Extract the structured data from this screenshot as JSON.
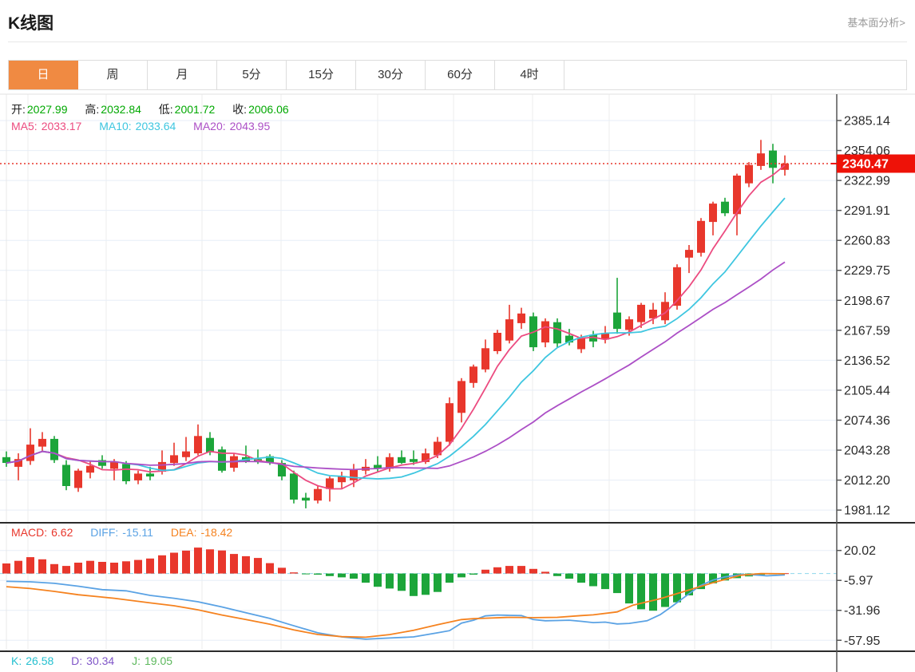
{
  "header": {
    "title": "K线图",
    "link": "基本面分析>"
  },
  "tabs": {
    "items": [
      {
        "name": "tab-day",
        "label": "日",
        "active": true
      },
      {
        "name": "tab-week",
        "label": "周",
        "active": false
      },
      {
        "name": "tab-month",
        "label": "月",
        "active": false
      },
      {
        "name": "tab-5min",
        "label": "5分",
        "active": false
      },
      {
        "name": "tab-15min",
        "label": "15分",
        "active": false
      },
      {
        "name": "tab-30min",
        "label": "30分",
        "active": false
      },
      {
        "name": "tab-60min",
        "label": "60分",
        "active": false
      },
      {
        "name": "tab-4hour",
        "label": "4时",
        "active": false
      }
    ]
  },
  "ohlc_legend": {
    "open_label": "开:",
    "open_value": "2027.99",
    "high_label": "高:",
    "high_value": "2032.84",
    "low_label": "低:",
    "low_value": "2001.72",
    "close_label": "收:",
    "close_value": "2006.06"
  },
  "ma_legend": {
    "ma5_label": "MA5:",
    "ma5_value": "2033.17",
    "ma10_label": "MA10:",
    "ma10_value": "2033.64",
    "ma20_label": "MA20:",
    "ma20_value": "2043.95"
  },
  "macd_legend": {
    "macd_label": "MACD:",
    "macd_value": "6.62",
    "diff_label": "DIFF:",
    "diff_value": "-15.11",
    "dea_label": "DEA:",
    "dea_value": "-18.42"
  },
  "kdj_legend": {
    "k_label": "K:",
    "k_value": "26.58",
    "d_label": "D:",
    "d_value": "30.34",
    "j_label": "J:",
    "j_value": "19.05"
  },
  "colors": {
    "up": "#e8372c",
    "down": "#1ca53a",
    "ma5": "#ec4b80",
    "ma10": "#3ec6e0",
    "ma20": "#ac4fc6",
    "diff": "#5aa2e4",
    "dea": "#f5821f",
    "k": "#26c0d0",
    "d": "#8056c8",
    "j": "#5cb85c",
    "ohlc_value": "#00a800",
    "active_tab": "#f08a42",
    "last_price_bg": "#ee1208"
  },
  "chart_data": {
    "type": "candlestick",
    "title": "K线图",
    "grid": true,
    "legend_position": "top-left",
    "y_axis_ticks": [
      2385.14,
      2354.06,
      2322.99,
      2291.91,
      2260.83,
      2229.75,
      2198.67,
      2167.59,
      2136.52,
      2105.44,
      2074.36,
      2043.28,
      2012.2,
      1981.12
    ],
    "last_price": 2340.47,
    "ma_periods": [
      5,
      10,
      20
    ],
    "candles": [
      [
        2036,
        2042,
        2026,
        2030
      ],
      [
        2026,
        2040,
        2012,
        2034
      ],
      [
        2032,
        2066,
        2028,
        2049
      ],
      [
        2047,
        2062,
        2042,
        2055
      ],
      [
        2055,
        2058,
        2030,
        2033
      ],
      [
        2027.99,
        2032.84,
        2001.72,
        2006.06
      ],
      [
        2004,
        2024,
        2000,
        2022
      ],
      [
        2020,
        2032,
        2014,
        2027
      ],
      [
        2033,
        2038,
        2024,
        2027
      ],
      [
        2024,
        2034,
        2012,
        2031
      ],
      [
        2029,
        2032,
        2008,
        2011
      ],
      [
        2012,
        2022,
        2008,
        2019
      ],
      [
        2019,
        2026,
        2012,
        2016
      ],
      [
        2021,
        2043,
        2018,
        2031
      ],
      [
        2030,
        2051,
        2027,
        2038
      ],
      [
        2036,
        2057,
        2032,
        2042
      ],
      [
        2040,
        2070,
        2038,
        2058
      ],
      [
        2056,
        2062,
        2038,
        2041
      ],
      [
        2044,
        2047,
        2020,
        2022
      ],
      [
        2025,
        2040,
        2021,
        2037
      ],
      [
        2036,
        2048,
        2030,
        2032
      ],
      [
        2034,
        2044,
        2029,
        2031
      ],
      [
        2037,
        2039,
        2028,
        2030
      ],
      [
        2030,
        2033,
        2012,
        2016
      ],
      [
        2019,
        2022,
        1988,
        1992
      ],
      [
        1994,
        1999,
        1983,
        1991
      ],
      [
        1991,
        2006,
        1988,
        2003
      ],
      [
        2003,
        2016,
        1990,
        2014
      ],
      [
        2010,
        2021,
        2004,
        2016
      ],
      [
        2012,
        2029,
        2005,
        2023
      ],
      [
        2022,
        2034,
        2018,
        2026
      ],
      [
        2028,
        2037,
        2021,
        2024
      ],
      [
        2024,
        2040,
        2021,
        2036
      ],
      [
        2036,
        2043,
        2029,
        2030
      ],
      [
        2034,
        2043,
        2028,
        2031
      ],
      [
        2031,
        2045,
        2029,
        2040
      ],
      [
        2038,
        2057,
        2035,
        2052
      ],
      [
        2052,
        2098,
        2048,
        2092
      ],
      [
        2082,
        2118,
        2072,
        2115
      ],
      [
        2113,
        2132,
        2108,
        2130
      ],
      [
        2127,
        2158,
        2124,
        2149
      ],
      [
        2146,
        2168,
        2143,
        2165
      ],
      [
        2157,
        2194,
        2154,
        2179
      ],
      [
        2175,
        2191,
        2169,
        2185
      ],
      [
        2182,
        2186,
        2146,
        2150
      ],
      [
        2155,
        2180,
        2150,
        2177
      ],
      [
        2176,
        2180,
        2150,
        2154
      ],
      [
        2162,
        2169,
        2152,
        2155
      ],
      [
        2148,
        2163,
        2144,
        2160
      ],
      [
        2163,
        2167,
        2150,
        2156
      ],
      [
        2158,
        2172,
        2154,
        2165
      ],
      [
        2186,
        2222,
        2164,
        2169
      ],
      [
        2168,
        2182,
        2162,
        2179
      ],
      [
        2176,
        2196,
        2170,
        2194
      ],
      [
        2180,
        2196,
        2174,
        2189
      ],
      [
        2178,
        2207,
        2174,
        2197
      ],
      [
        2193,
        2236,
        2189,
        2233
      ],
      [
        2243,
        2256,
        2227,
        2251
      ],
      [
        2248,
        2284,
        2244,
        2281
      ],
      [
        2280,
        2301,
        2266,
        2299
      ],
      [
        2301,
        2305,
        2286,
        2289
      ],
      [
        2288,
        2330,
        2266,
        2328
      ],
      [
        2320,
        2342,
        2316,
        2339
      ],
      [
        2338,
        2365,
        2334,
        2351
      ],
      [
        2354,
        2361,
        2320,
        2336
      ],
      [
        2334,
        2349,
        2328,
        2340.5
      ]
    ],
    "macd": {
      "y_ticks": [
        20.02,
        -5.97,
        -31.96,
        -57.95
      ],
      "histogram": [
        8.7,
        11,
        14.2,
        12.3,
        8.2,
        6.6,
        9.4,
        11,
        10.1,
        9.4,
        10.6,
        11.8,
        13,
        15.8,
        18.1,
        19.9,
        22.5,
        21,
        20,
        17,
        15,
        13.5,
        9,
        5,
        1,
        -0.4,
        -1,
        -2.2,
        -3.3,
        -4.5,
        -8,
        -11.5,
        -13,
        -15,
        -19.5,
        -18.5,
        -16,
        -8,
        -3.3,
        -1,
        3.3,
        5.4,
        6.6,
        6.6,
        4,
        1.5,
        -2.2,
        -4.5,
        -8,
        -11,
        -13.5,
        -17,
        -26,
        -31,
        -32.3,
        -29,
        -25,
        -19,
        -13.5,
        -8.5,
        -6,
        -4,
        -2.5,
        -1.2,
        -0.6,
        0.3
      ],
      "diff": [
        [
          0,
          -6.8
        ],
        [
          2,
          -7.2
        ],
        [
          4,
          -8.5
        ],
        [
          6,
          -11
        ],
        [
          8,
          -14
        ],
        [
          10,
          -15
        ],
        [
          12,
          -19
        ],
        [
          14,
          -21.5
        ],
        [
          16,
          -24.5
        ],
        [
          18,
          -29
        ],
        [
          20,
          -34
        ],
        [
          22,
          -39
        ],
        [
          23.5,
          -43.8
        ],
        [
          26,
          -51.5
        ],
        [
          28,
          -55
        ],
        [
          30,
          -57
        ],
        [
          32,
          -56
        ],
        [
          34,
          -55
        ],
        [
          36,
          -51.5
        ],
        [
          37,
          -49.6
        ],
        [
          38,
          -43
        ],
        [
          39,
          -40.5
        ],
        [
          40,
          -36.8
        ],
        [
          41,
          -36
        ],
        [
          42,
          -36.3
        ],
        [
          43,
          -36.5
        ],
        [
          44,
          -40
        ],
        [
          45,
          -41
        ],
        [
          46,
          -40.8
        ],
        [
          47,
          -40.5
        ],
        [
          48,
          -41.5
        ],
        [
          49,
          -42.6
        ],
        [
          50,
          -42.2
        ],
        [
          51,
          -43.8
        ],
        [
          52,
          -43.3
        ],
        [
          53.5,
          -41
        ],
        [
          54.6,
          -35.7
        ],
        [
          55.7,
          -27.6
        ],
        [
          56.8,
          -19.1
        ],
        [
          57.9,
          -10.7
        ],
        [
          59,
          -5.7
        ],
        [
          60,
          -2.9
        ],
        [
          61.3,
          -1
        ],
        [
          62.5,
          -1.2
        ],
        [
          63.5,
          -2
        ],
        [
          65,
          -1.2
        ]
      ],
      "dea": [
        [
          0,
          -11.4
        ],
        [
          2,
          -13
        ],
        [
          4,
          -15.5
        ],
        [
          6,
          -18.4
        ],
        [
          9,
          -21.5
        ],
        [
          12,
          -25.5
        ],
        [
          14,
          -28
        ],
        [
          16,
          -31.5
        ],
        [
          18,
          -36
        ],
        [
          20,
          -40
        ],
        [
          22,
          -44
        ],
        [
          24,
          -49
        ],
        [
          26,
          -52.9
        ],
        [
          28,
          -54.8
        ],
        [
          30,
          -55.3
        ],
        [
          32,
          -53
        ],
        [
          34,
          -49.3
        ],
        [
          36,
          -44.5
        ],
        [
          38,
          -40
        ],
        [
          39,
          -39.2
        ],
        [
          40,
          -38.8
        ],
        [
          42,
          -38
        ],
        [
          44,
          -38.3
        ],
        [
          46,
          -38
        ],
        [
          48,
          -36.5
        ],
        [
          49,
          -35.9
        ],
        [
          51,
          -33.3
        ],
        [
          52.3,
          -27.6
        ],
        [
          54.6,
          -21.8
        ],
        [
          56.8,
          -14.9
        ],
        [
          59,
          -8
        ],
        [
          61.3,
          -1.5
        ],
        [
          63,
          0
        ],
        [
          65,
          -0.2
        ]
      ]
    }
  }
}
